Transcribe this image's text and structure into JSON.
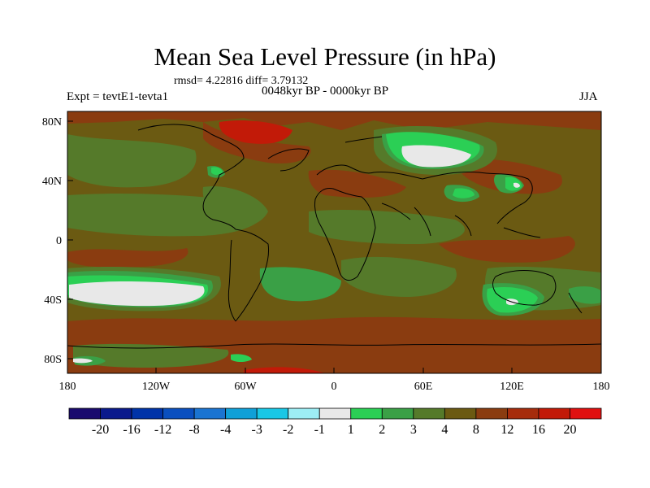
{
  "title": "Mean Sea Level Pressure (in hPa)",
  "stats": "rmsd= 4.22816 diff= 3.79132",
  "experiment": "Expt = tevtE1-tevta1",
  "period": "0048kyr BP - 0000kyr BP",
  "season": "JJA",
  "lat_axis": [
    "80N",
    "40N",
    "0",
    "40S",
    "80S"
  ],
  "lon_axis": [
    "180",
    "120W",
    "60W",
    "0",
    "60E",
    "120E",
    "180"
  ],
  "colorbar": {
    "labels": [
      "-20",
      "-16",
      "-12",
      "-8",
      "-4",
      "-3",
      "-2",
      "-1",
      "1",
      "2",
      "3",
      "4",
      "8",
      "12",
      "16",
      "20"
    ],
    "colors": [
      "#1a0a6e",
      "#0a1a8c",
      "#0033a8",
      "#0a4fbf",
      "#1b74d1",
      "#10a0d8",
      "#19c7e6",
      "#9deef5",
      "#e8e8e8",
      "#2bcf55",
      "#3aa046",
      "#557a2a",
      "#6b5a12",
      "#8a3c10",
      "#a62c0c",
      "#c21a08",
      "#e01010"
    ]
  },
  "colors": {
    "ocean_base": "#6b5a12",
    "brown": "#8a3c10",
    "red": "#c21a08",
    "dark_green": "#557a2a",
    "mid_green": "#3aa046",
    "bright_green": "#2bcf55",
    "near_zero": "#e8e8e8"
  }
}
